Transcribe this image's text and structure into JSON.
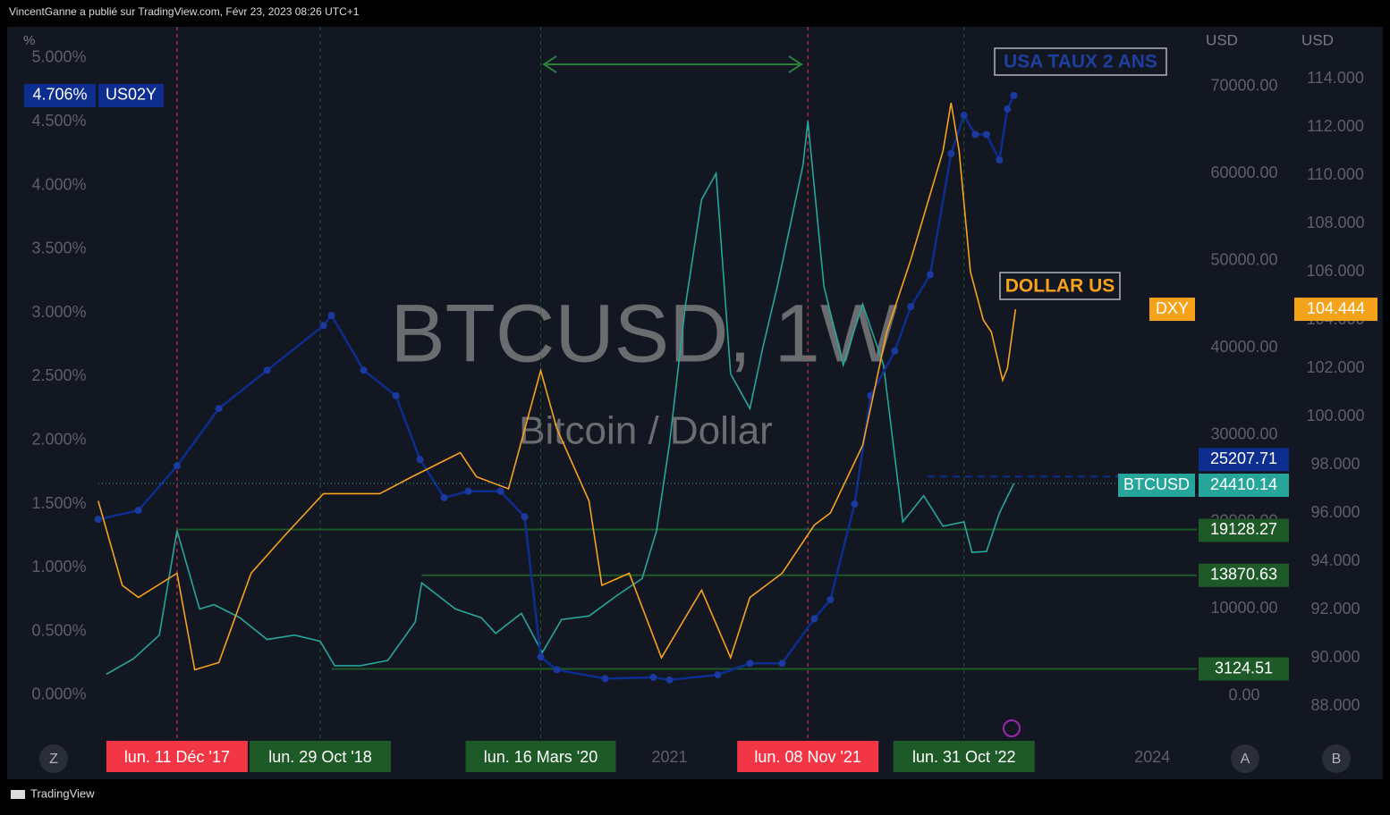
{
  "header": "VincentGanne a publié sur TradingView.com, Févr 23, 2023 08:26 UTC+1",
  "footer": "TradingView",
  "buttons": [
    "Z",
    "A",
    "B"
  ],
  "chart_data": {
    "type": "line",
    "watermark": "BTCUSD, 1W",
    "subtitle": "Bitcoin / Dollar",
    "ylabel": "%",
    "y2label": "USD",
    "y3label": "USD",
    "annotations": [
      {
        "text": "USA TAUX 2 ANS",
        "color": "#1e3f9e"
      },
      {
        "text": "DOLLAR US",
        "color": "#f7a21b"
      }
    ],
    "xlim": [
      2016.84,
      2024.26
    ],
    "xticks": [
      2021,
      2024
    ],
    "ylim": [
      -0.365,
      5.245
    ],
    "yticks": [
      {
        "value": 0,
        "label": "0.000%"
      },
      {
        "value": 0.5,
        "label": "0.500%"
      },
      {
        "value": 1,
        "label": "1.000%"
      },
      {
        "value": 1.5,
        "label": "1.500%"
      },
      {
        "value": 2,
        "label": "2.000%"
      },
      {
        "value": 2.5,
        "label": "2.500%"
      },
      {
        "value": 3,
        "label": "3.000%"
      },
      {
        "value": 3.5,
        "label": "3.500%"
      },
      {
        "value": 4,
        "label": "4.000%"
      },
      {
        "value": 4.5,
        "label": "4.500%"
      },
      {
        "value": 5,
        "label": "5.000%"
      }
    ],
    "y2lim": [
      -5231,
      76821
    ],
    "y2ticks": [
      {
        "value": 0,
        "label": "0.00"
      },
      {
        "value": 10000,
        "label": "10000.00"
      },
      {
        "value": 20000,
        "label": "20000.00"
      },
      {
        "value": 30000,
        "label": "30000.00"
      },
      {
        "value": 40000,
        "label": "40000.00"
      },
      {
        "value": 50000,
        "label": "50000.00"
      },
      {
        "value": 60000,
        "label": "60000.00"
      },
      {
        "value": 70000,
        "label": "70000.00"
      }
    ],
    "y3lim": [
      86.52,
      116.15
    ],
    "y3ticks": [
      {
        "value": 88,
        "label": "88.000"
      },
      {
        "value": 90,
        "label": "90.000"
      },
      {
        "value": 92,
        "label": "92.000"
      },
      {
        "value": 94,
        "label": "94.000"
      },
      {
        "value": 96,
        "label": "96.000"
      },
      {
        "value": 98,
        "label": "98.000"
      },
      {
        "value": 100,
        "label": "100.000"
      },
      {
        "value": 102,
        "label": "102.000"
      },
      {
        "value": 104,
        "label": "104.000"
      },
      {
        "value": 106,
        "label": "106.000"
      },
      {
        "value": 108,
        "label": "108.000"
      },
      {
        "value": 110,
        "label": "110.000"
      },
      {
        "value": 112,
        "label": "112.000"
      },
      {
        "value": 114,
        "label": "114.000"
      }
    ],
    "series": [
      {
        "name": "BTCUSD",
        "axis": "y2",
        "color": "#26a69a",
        "last": 24410.14,
        "x": [
          2017.5,
          2017.67,
          2017.83,
          2017.94,
          2018.08,
          2018.17,
          2018.33,
          2018.5,
          2018.67,
          2018.83,
          2018.92,
          2019.08,
          2019.25,
          2019.42,
          2019.46,
          2019.67,
          2019.83,
          2019.92,
          2020.08,
          2020.21,
          2020.33,
          2020.5,
          2020.67,
          2020.83,
          2020.92,
          2021.0,
          2021.1,
          2021.2,
          2021.29,
          2021.38,
          2021.5,
          2021.58,
          2021.67,
          2021.83,
          2021.86,
          2021.96,
          2022.08,
          2022.2,
          2022.33,
          2022.45,
          2022.58,
          2022.7,
          2022.83,
          2022.88,
          2022.97,
          2023.05,
          2023.14
        ],
        "values": [
          2500,
          4300,
          7000,
          19000,
          10000,
          10500,
          9000,
          6500,
          7000,
          6300,
          3500,
          3500,
          4100,
          8500,
          13000,
          10000,
          9000,
          7200,
          9500,
          5000,
          8800,
          9200,
          11500,
          13500,
          19000,
          29000,
          45000,
          57000,
          60000,
          37000,
          33000,
          40000,
          47000,
          61000,
          66000,
          47000,
          38000,
          45000,
          38000,
          20000,
          23000,
          19500,
          20000,
          16500,
          16600,
          21000,
          24410.14
        ]
      },
      {
        "name": "US02Y",
        "axis": "y",
        "color": "#0d2d8f",
        "last": {
          "value": 4.706,
          "label": "4.706%"
        },
        "x": [
          2017.45,
          2017.7,
          2017.94,
          2018.2,
          2018.5,
          2018.85,
          2018.9,
          2019.1,
          2019.3,
          2019.45,
          2019.6,
          2019.75,
          2019.95,
          2020.1,
          2020.2,
          2020.3,
          2020.6,
          2020.9,
          2021.0,
          2021.3,
          2021.5,
          2021.7,
          2021.9,
          2022.0,
          2022.15,
          2022.25,
          2022.4,
          2022.5,
          2022.62,
          2022.75,
          2022.83,
          2022.9,
          2022.97,
          2023.05,
          2023.1,
          2023.14
        ],
        "values": [
          1.38,
          1.45,
          1.8,
          2.25,
          2.55,
          2.9,
          2.98,
          2.55,
          2.35,
          1.85,
          1.55,
          1.6,
          1.6,
          1.4,
          0.3,
          0.2,
          0.13,
          0.14,
          0.12,
          0.16,
          0.25,
          0.25,
          0.6,
          0.75,
          1.5,
          2.35,
          2.7,
          3.05,
          3.3,
          4.25,
          4.55,
          4.4,
          4.4,
          4.2,
          4.6,
          4.706
        ]
      },
      {
        "name": "DXY",
        "axis": "y3",
        "color": "#f7a21b",
        "last": 104.444,
        "x": [
          2017.45,
          2017.6,
          2017.7,
          2017.94,
          2018.05,
          2018.2,
          2018.4,
          2018.6,
          2018.85,
          2019.2,
          2019.4,
          2019.7,
          2019.8,
          2020.0,
          2020.2,
          2020.3,
          2020.5,
          2020.58,
          2020.75,
          2020.95,
          2021.2,
          2021.38,
          2021.5,
          2021.7,
          2021.9,
          2022.0,
          2022.2,
          2022.35,
          2022.5,
          2022.7,
          2022.75,
          2022.8,
          2022.87,
          2022.95,
          2023.0,
          2023.07,
          2023.1,
          2023.15
        ],
        "values": [
          96.5,
          93,
          92.5,
          93.5,
          89.5,
          89.8,
          93.5,
          95,
          96.8,
          96.8,
          97.5,
          98.5,
          97.5,
          97,
          101.9,
          99.5,
          96.5,
          93,
          93.5,
          90,
          92.8,
          90,
          92.5,
          93.5,
          95.5,
          96,
          98.8,
          103.5,
          106.5,
          111,
          113,
          111,
          106,
          104,
          103.5,
          101.5,
          102,
          104.444
        ]
      }
    ],
    "price_tags": [
      {
        "value": 25207.71,
        "color": "#0d2d8f"
      }
    ],
    "levels": [
      {
        "value": 19128.27,
        "from": 2017.94
      },
      {
        "value": 13870.63,
        "from": 2019.46
      },
      {
        "value": 3124.51,
        "from": 2018.9
      }
    ],
    "markers": [
      {
        "x": 2017.94,
        "label": "lun. 11 Déc '17",
        "color": "#f23645"
      },
      {
        "x": 2018.83,
        "label": "lun. 29 Oct '18",
        "color": "#1e5a28"
      },
      {
        "x": 2020.2,
        "label": "lun. 16 Mars '20",
        "color": "#1e5a28"
      },
      {
        "x": 2021.86,
        "label": "lun. 08 Nov '21",
        "color": "#f23645"
      },
      {
        "x": 2022.83,
        "label": "lun. 31 Oct '22",
        "color": "#1e5a28"
      }
    ]
  }
}
